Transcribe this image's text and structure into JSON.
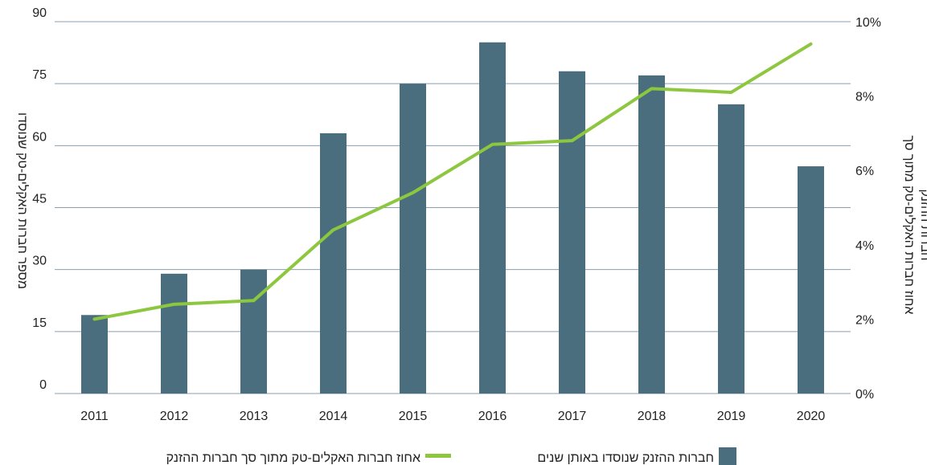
{
  "chart_data": {
    "type": "bar+line",
    "categories": [
      "2011",
      "2012",
      "2013",
      "2014",
      "2015",
      "2016",
      "2017",
      "2018",
      "2019",
      "2020"
    ],
    "series": [
      {
        "name": "חברות ההזנק שנוסדו באותן שנים",
        "kind": "bar",
        "axis": "left",
        "color": "#4a6e7e",
        "values": [
          19,
          29,
          30,
          63,
          75,
          85,
          78,
          77,
          70,
          55
        ]
      },
      {
        "name": "אחוז חברות האקלים-טק מתוך סך חברות ההזנק",
        "kind": "line",
        "axis": "right",
        "color": "#8dc63f",
        "values": [
          2.0,
          2.4,
          2.5,
          4.4,
          5.4,
          6.7,
          6.8,
          8.2,
          8.1,
          9.4
        ]
      }
    ],
    "y_left": {
      "label": "מספר חברות האקלים-טק שנוסדו",
      "ylim": [
        0,
        90
      ],
      "ticks": [
        "0",
        "15",
        "30",
        "45",
        "60",
        "75",
        "90"
      ]
    },
    "y_right": {
      "label_line1": "אחוז חברות האקלים-טק מתוך סך",
      "label_line2": "חברות ההזנק",
      "ylim": [
        0,
        10
      ],
      "ticks": [
        "0%",
        "2%",
        "4%",
        "6%",
        "8%",
        "10%"
      ]
    },
    "grid": true,
    "legend_position": "bottom"
  }
}
